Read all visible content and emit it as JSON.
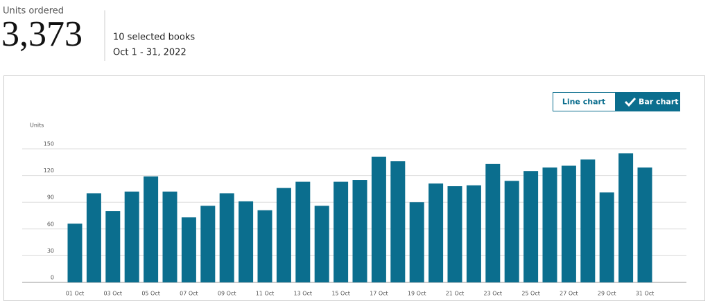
{
  "header": {
    "label": "Units ordered",
    "total": "3,373",
    "selection": "10 selected books",
    "date_range": "Oct 1 - 31, 2022"
  },
  "toggle": {
    "options": [
      "Line chart",
      "Bar chart"
    ],
    "selected": 1
  },
  "chart_data": {
    "type": "bar",
    "y_label": "Units",
    "categories": [
      "01 Oct",
      null,
      "03 Oct",
      null,
      "05 Oct",
      null,
      "07 Oct",
      null,
      "09 Oct",
      null,
      "11 Oct",
      null,
      "13 Oct",
      null,
      "15 Oct",
      null,
      "17 Oct",
      null,
      "19 Oct",
      null,
      "21 Oct",
      null,
      "23 Oct",
      null,
      "25 Oct",
      null,
      "27 Oct",
      null,
      "29 Oct",
      null,
      "31 Oct"
    ],
    "values": [
      66,
      100,
      80,
      102,
      119,
      102,
      73,
      86,
      100,
      91,
      81,
      106,
      113,
      86,
      113,
      115,
      141,
      136,
      90,
      111,
      108,
      109,
      133,
      114,
      125,
      129,
      131,
      138,
      101,
      145,
      129
    ],
    "color": "#0b6e8e",
    "ylim": [
      0,
      150
    ],
    "yticks": [
      0,
      30,
      60,
      90,
      120,
      150
    ],
    "grid": true
  }
}
